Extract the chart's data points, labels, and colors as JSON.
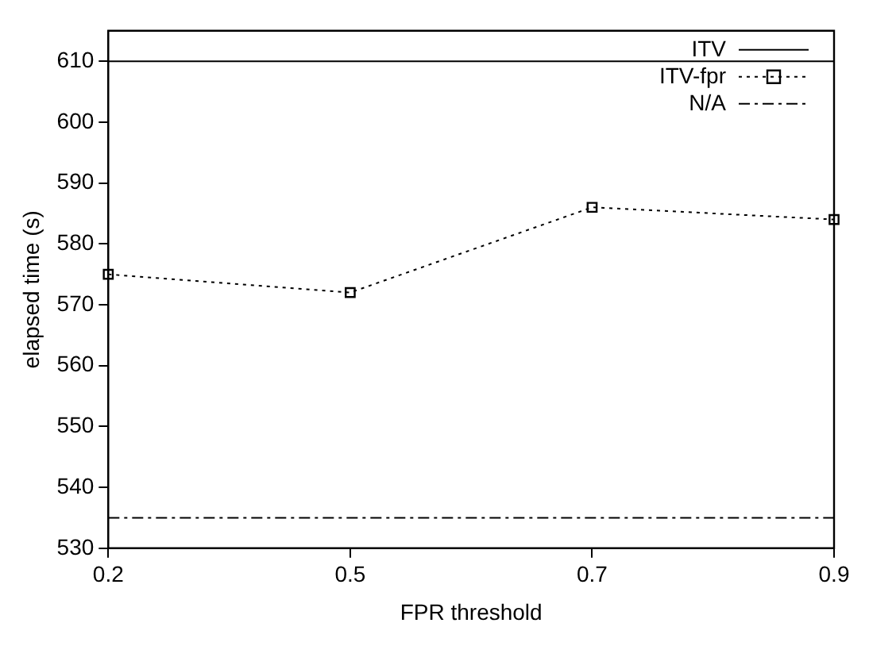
{
  "chart_data": {
    "type": "line",
    "xlabel": "FPR threshold",
    "ylabel": "elapsed time (s)",
    "categories": [
      "0.2",
      "0.5",
      "0.7",
      "0.9"
    ],
    "series": [
      {
        "name": "ITV",
        "color": "#000000",
        "values": [
          610,
          610,
          610,
          610
        ],
        "line_style": "solid",
        "marker": "none"
      },
      {
        "name": "ITV-fpr",
        "color": "#000000",
        "values": [
          575,
          572,
          586,
          584
        ],
        "line_style": "dotted",
        "marker": "square"
      },
      {
        "name": "N/A",
        "color": "#000000",
        "values": [
          535,
          535,
          535,
          535
        ],
        "line_style": "dashed",
        "marker": "none"
      }
    ],
    "ylim": [
      530,
      615
    ],
    "yticks": [
      530,
      540,
      550,
      560,
      570,
      580,
      590,
      600,
      610
    ],
    "grid": false,
    "legend": "top right"
  }
}
